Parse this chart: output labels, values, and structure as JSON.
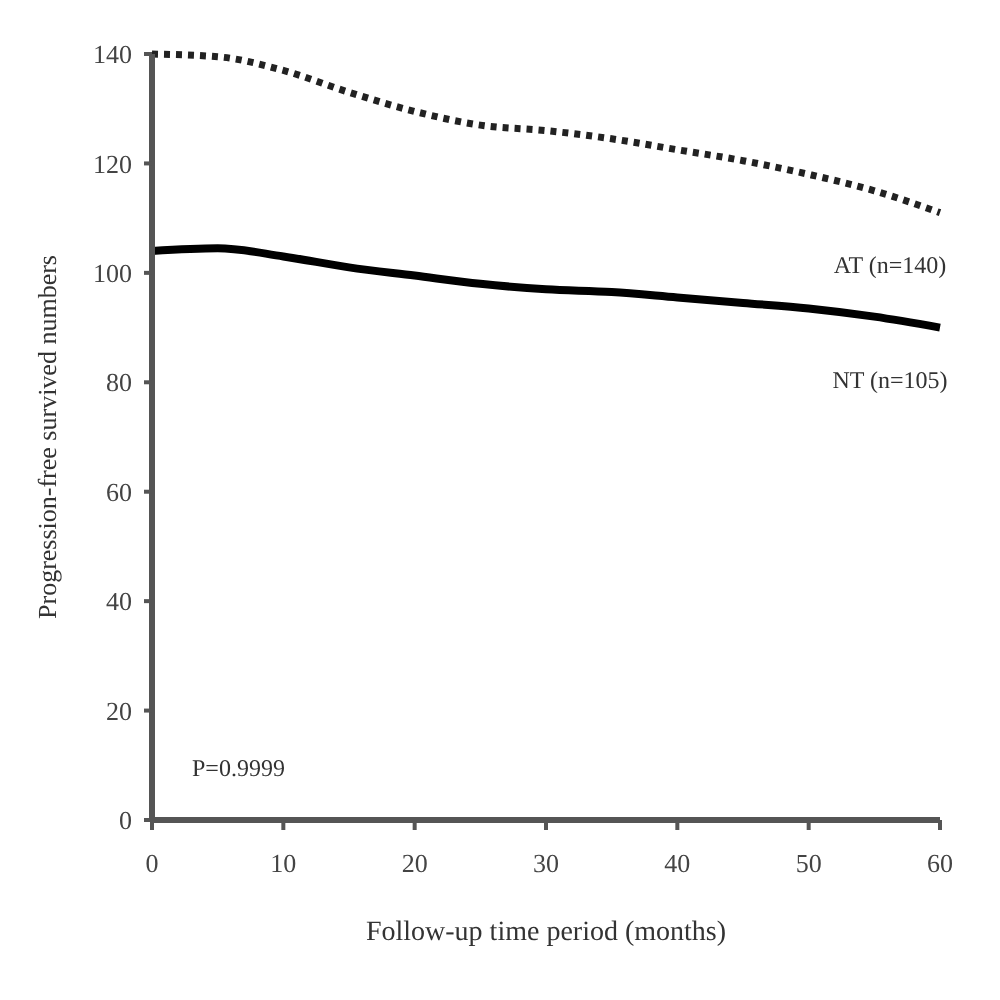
{
  "chart_data": {
    "type": "line",
    "xlabel": "Follow-up time period (months)",
    "ylabel": "Progression-free survived numbers",
    "x": [
      0,
      5,
      10,
      15,
      20,
      25,
      30,
      35,
      40,
      45,
      50,
      55,
      60
    ],
    "series": [
      {
        "name": "AT (n=140)",
        "color": "#222222",
        "line_style": "dotted",
        "values": [
          140,
          139.5,
          137,
          133,
          129.5,
          127,
          126,
          124.5,
          122.5,
          120.5,
          118,
          115,
          111
        ]
      },
      {
        "name": "NT (n=105)",
        "color": "#000000",
        "line_style": "solid",
        "values": [
          104,
          104.5,
          103,
          101,
          99.5,
          98,
          97,
          96.5,
          95.5,
          94.5,
          93.5,
          92,
          90
        ]
      }
    ],
    "xlim": [
      0,
      60
    ],
    "xticks": [
      0,
      10,
      20,
      30,
      40,
      50,
      60
    ],
    "ylim": [
      0,
      140
    ],
    "yticks": [
      0,
      20,
      40,
      60,
      80,
      100,
      120,
      140
    ],
    "grid": false,
    "marker": "none",
    "annotations": [
      "P=0.9999"
    ]
  }
}
